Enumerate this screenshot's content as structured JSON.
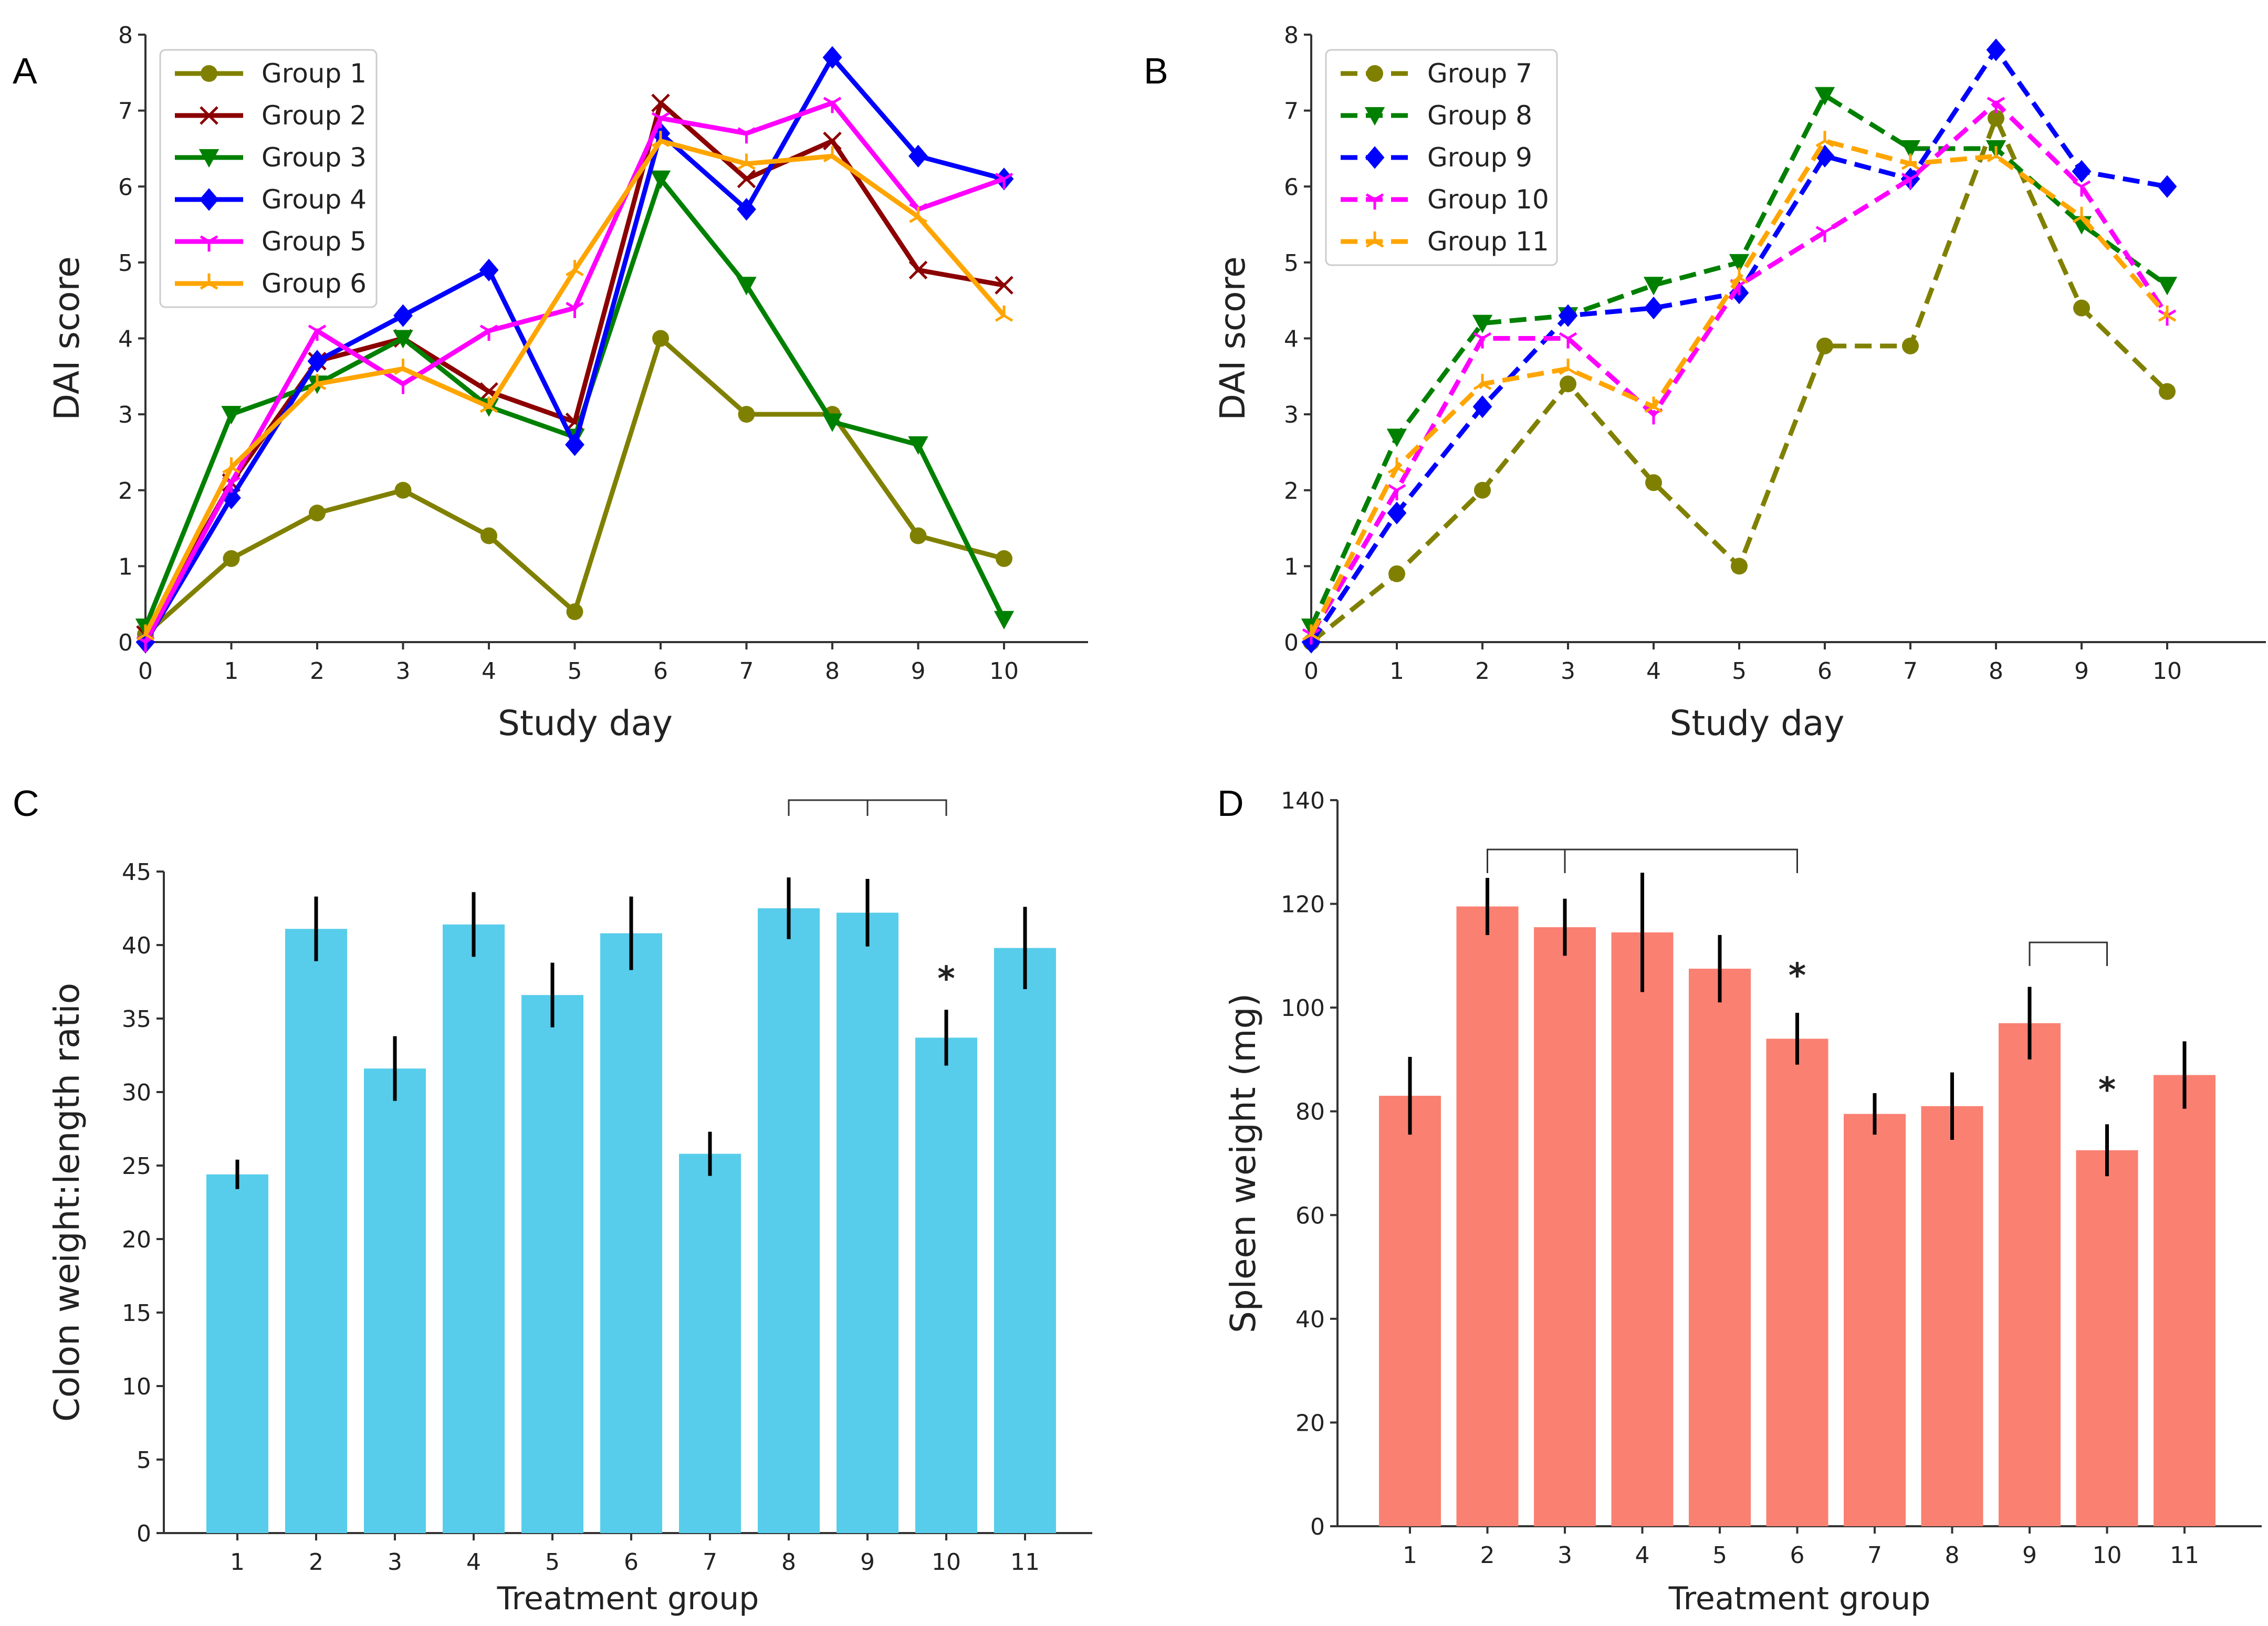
{
  "figure": {
    "panel_letters": [
      "A",
      "B",
      "C",
      "D"
    ]
  },
  "chart_data": [
    {
      "panel": "A",
      "type": "line",
      "title": "",
      "xlabel": "Study day",
      "ylabel": "DAI score",
      "x": [
        0,
        1,
        2,
        3,
        4,
        5,
        6,
        7,
        8,
        9,
        10
      ],
      "xlim": [
        0,
        11
      ],
      "ylim": [
        0,
        8
      ],
      "xticks": [
        0,
        1,
        2,
        3,
        4,
        5,
        6,
        7,
        8,
        9,
        10
      ],
      "yticks": [
        0,
        1,
        2,
        3,
        4,
        5,
        6,
        7,
        8
      ],
      "grid": false,
      "legend_position": "top-left",
      "series": [
        {
          "name": "Group 1",
          "color": "#808000",
          "marker": "circle",
          "linestyle": "solid",
          "values": [
            0.1,
            1.1,
            1.7,
            2.0,
            1.4,
            0.4,
            4.0,
            3.0,
            3.0,
            1.4,
            1.1
          ]
        },
        {
          "name": "Group 2",
          "color": "#8b0000",
          "marker": "x",
          "linestyle": "solid",
          "values": [
            0.1,
            2.1,
            3.7,
            4.0,
            3.3,
            2.9,
            7.1,
            6.1,
            6.6,
            4.9,
            4.7
          ]
        },
        {
          "name": "Group 3",
          "color": "#008000",
          "marker": "triangle-down",
          "linestyle": "solid",
          "values": [
            0.2,
            3.0,
            3.4,
            4.0,
            3.1,
            2.7,
            6.1,
            4.7,
            2.9,
            2.6,
            0.3
          ]
        },
        {
          "name": "Group 4",
          "color": "#0000ff",
          "marker": "diamond",
          "linestyle": "solid",
          "values": [
            0.0,
            1.9,
            3.7,
            4.3,
            4.9,
            2.6,
            6.7,
            5.7,
            7.7,
            6.4,
            6.1
          ]
        },
        {
          "name": "Group 5",
          "color": "#ff00ff",
          "marker": "tri-down",
          "linestyle": "solid",
          "values": [
            0.0,
            2.1,
            4.1,
            3.4,
            4.1,
            4.4,
            6.9,
            6.7,
            7.1,
            5.7,
            6.1
          ]
        },
        {
          "name": "Group 6",
          "color": "#ffa500",
          "marker": "tri-up",
          "linestyle": "solid",
          "values": [
            0.1,
            2.3,
            3.4,
            3.6,
            3.1,
            4.9,
            6.6,
            6.3,
            6.4,
            5.6,
            4.3
          ]
        }
      ]
    },
    {
      "panel": "B",
      "type": "line",
      "title": "",
      "xlabel": "Study day",
      "ylabel": "DAI score",
      "x": [
        0,
        1,
        2,
        3,
        4,
        5,
        6,
        7,
        8,
        9,
        10
      ],
      "xlim": [
        0,
        11
      ],
      "ylim": [
        0,
        8
      ],
      "xticks": [
        0,
        1,
        2,
        3,
        4,
        5,
        6,
        7,
        8,
        9,
        10
      ],
      "yticks": [
        0,
        1,
        2,
        3,
        4,
        5,
        6,
        7,
        8
      ],
      "grid": false,
      "legend_position": "top-left",
      "series": [
        {
          "name": "Group 7",
          "color": "#808000",
          "marker": "circle",
          "linestyle": "dashed",
          "values": [
            0.0,
            0.9,
            2.0,
            3.4,
            2.1,
            1.0,
            3.9,
            3.9,
            6.9,
            4.4,
            3.3
          ]
        },
        {
          "name": "Group 8",
          "color": "#008000",
          "marker": "triangle-down",
          "linestyle": "dashed",
          "values": [
            0.2,
            2.7,
            4.2,
            4.3,
            4.7,
            5.0,
            7.2,
            6.5,
            6.5,
            5.5,
            4.7
          ]
        },
        {
          "name": "Group 9",
          "color": "#0000ff",
          "marker": "diamond",
          "linestyle": "dashed",
          "values": [
            0.0,
            1.7,
            3.1,
            4.3,
            4.4,
            4.6,
            6.4,
            6.1,
            7.8,
            6.2,
            6.0
          ]
        },
        {
          "name": "Group 10",
          "color": "#ff00ff",
          "marker": "tri-down",
          "linestyle": "dashed",
          "values": [
            0.1,
            2.0,
            4.0,
            4.0,
            3.0,
            4.7,
            5.4,
            6.1,
            7.1,
            6.0,
            4.3
          ]
        },
        {
          "name": "Group 11",
          "color": "#ffa500",
          "marker": "tri-up",
          "linestyle": "dashed",
          "values": [
            0.1,
            2.3,
            3.4,
            3.6,
            3.1,
            4.8,
            6.6,
            6.3,
            6.4,
            5.6,
            4.3
          ]
        }
      ]
    },
    {
      "panel": "C",
      "type": "bar",
      "title": "",
      "xlabel": "Treatment group",
      "ylabel": "Colon weight:length ratio",
      "categories": [
        "1",
        "2",
        "3",
        "4",
        "5",
        "6",
        "7",
        "8",
        "9",
        "10",
        "11"
      ],
      "values": [
        24.4,
        41.1,
        31.6,
        41.4,
        36.6,
        40.8,
        25.8,
        42.5,
        42.2,
        33.7,
        39.8
      ],
      "errors": [
        1.0,
        2.2,
        2.2,
        2.2,
        2.2,
        2.5,
        1.5,
        2.1,
        2.3,
        1.9,
        2.8
      ],
      "color": "#57cdeb",
      "ylim": [
        0,
        45
      ],
      "yticks": [
        0,
        5,
        10,
        15,
        20,
        25,
        30,
        35,
        40,
        45
      ],
      "grid": false,
      "annotations": [
        {
          "type": "asterisk",
          "text": "*",
          "category": "10",
          "value": 38.0
        },
        {
          "type": "bracket",
          "categories": [
            "8",
            "9",
            "10"
          ],
          "text": ""
        }
      ]
    },
    {
      "panel": "D",
      "type": "bar",
      "title": "",
      "xlabel": "Treatment group",
      "ylabel": "Spleen weight (mg)",
      "categories": [
        "1",
        "2",
        "3",
        "4",
        "5",
        "6",
        "7",
        "8",
        "9",
        "10",
        "11"
      ],
      "values": [
        83,
        119.5,
        115.5,
        114.5,
        107.5,
        94,
        79.5,
        81,
        97,
        72.5,
        87
      ],
      "errors": [
        7.5,
        5.5,
        5.5,
        11.5,
        6.5,
        5.0,
        4.0,
        6.5,
        7.0,
        5.0,
        6.5
      ],
      "color": "#fa8072",
      "ylim": [
        0,
        140
      ],
      "yticks": [
        0,
        20,
        40,
        60,
        80,
        100,
        120,
        140
      ],
      "grid": false,
      "annotations": [
        {
          "type": "asterisk",
          "text": "*",
          "category": "6",
          "value": 107
        },
        {
          "type": "asterisk",
          "text": "*",
          "category": "10",
          "value": 85
        },
        {
          "type": "bracket",
          "categories": [
            "2",
            "3",
            "6"
          ],
          "text": ""
        },
        {
          "type": "bracket",
          "categories": [
            "9",
            "10"
          ],
          "text": ""
        }
      ]
    }
  ]
}
